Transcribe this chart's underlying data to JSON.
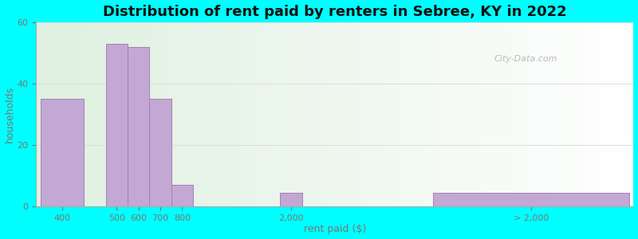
{
  "title": "Distribution of rent paid by renters in Sebree, KY in 2022",
  "xlabel": "rent paid ($)",
  "ylabel": "households",
  "categories": [
    "400",
    "500",
    "600",
    "700",
    "800",
    "2,000",
    "> 2,000"
  ],
  "bar_heights": [
    35,
    53,
    52,
    35,
    7,
    4.5,
    4.5
  ],
  "bar_color": "#c4a8d4",
  "bar_edgecolor": "#9b79b0",
  "background_color": "#00ffff",
  "plot_bg_start": "#dff0e0",
  "plot_bg_end": "#ffffff",
  "ylim": [
    0,
    60
  ],
  "yticks": [
    0,
    20,
    40,
    60
  ],
  "title_fontsize": 13,
  "axis_label_fontsize": 9,
  "tick_fontsize": 8,
  "watermark_text": "City-Data.com",
  "x_positions": [
    0,
    1.5,
    2.0,
    2.5,
    3.0,
    5.5,
    9.0
  ],
  "x_widths": [
    1.0,
    0.5,
    0.5,
    0.5,
    0.5,
    0.5,
    4.5
  ]
}
